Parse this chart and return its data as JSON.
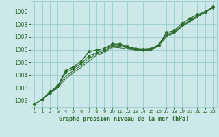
{
  "title": "Graphe pression niveau de la mer (hPa)",
  "background_color": "#cce8e8",
  "grid_color": "#99cccc",
  "line_color": "#2d6a2d",
  "marker_color": "#2d6a2d",
  "xlim": [
    -0.5,
    23.5
  ],
  "ylim": [
    1001.5,
    1009.8
  ],
  "yticks": [
    1002,
    1003,
    1004,
    1005,
    1006,
    1007,
    1008,
    1009
  ],
  "xticks": [
    0,
    1,
    2,
    3,
    4,
    5,
    6,
    7,
    8,
    9,
    10,
    11,
    12,
    13,
    14,
    15,
    16,
    17,
    18,
    19,
    20,
    21,
    22,
    23
  ],
  "series": [
    {
      "x": [
        0,
        1,
        2,
        3,
        4,
        5,
        6,
        7,
        8,
        9,
        10,
        11,
        12,
        13,
        14,
        15,
        16,
        17,
        18,
        19,
        20,
        21,
        22,
        23
      ],
      "y": [
        1001.7,
        1002.1,
        1002.7,
        1003.15,
        1004.35,
        1004.65,
        1005.05,
        1005.85,
        1005.95,
        1006.1,
        1006.45,
        1006.45,
        1006.25,
        1006.1,
        1006.05,
        1006.1,
        1006.35,
        1007.35,
        1007.5,
        1008.05,
        1008.45,
        1008.75,
        1009.0,
        1009.35
      ],
      "marker": "D",
      "markersize": 2.5,
      "linewidth": 1.0,
      "zorder": 5
    },
    {
      "x": [
        0,
        1,
        2,
        3,
        4,
        5,
        6,
        7,
        8,
        9,
        10,
        11,
        12,
        13,
        14,
        15,
        16,
        17,
        18,
        19,
        20,
        21,
        22,
        23
      ],
      "y": [
        1001.7,
        1002.1,
        1002.6,
        1003.1,
        1004.2,
        1004.5,
        1004.9,
        1005.5,
        1005.75,
        1005.95,
        1006.35,
        1006.35,
        1006.2,
        1006.05,
        1006.0,
        1006.05,
        1006.4,
        1007.2,
        1007.4,
        1007.9,
        1008.3,
        1008.65,
        1008.95,
        1009.3
      ],
      "marker": "D",
      "markersize": 2.0,
      "linewidth": 0.8,
      "zorder": 4
    },
    {
      "x": [
        0,
        1,
        2,
        3,
        4,
        5,
        6,
        7,
        8,
        9,
        10,
        11,
        12,
        13,
        14,
        15,
        16,
        17,
        18,
        19,
        20,
        21,
        22,
        23
      ],
      "y": [
        1001.7,
        1002.1,
        1002.6,
        1003.05,
        1003.9,
        1004.35,
        1004.75,
        1005.3,
        1005.65,
        1005.85,
        1006.3,
        1006.25,
        1006.15,
        1006.0,
        1005.98,
        1006.0,
        1006.35,
        1007.1,
        1007.35,
        1007.85,
        1008.25,
        1008.6,
        1008.95,
        1009.3
      ],
      "marker": null,
      "markersize": 0,
      "linewidth": 0.7,
      "zorder": 3
    },
    {
      "x": [
        0,
        1,
        2,
        3,
        4,
        5,
        6,
        7,
        8,
        9,
        10,
        11,
        12,
        13,
        14,
        15,
        16,
        17,
        18,
        19,
        20,
        21,
        22,
        23
      ],
      "y": [
        1001.7,
        1002.1,
        1002.55,
        1003.0,
        1003.7,
        1004.2,
        1004.6,
        1005.1,
        1005.55,
        1005.75,
        1006.2,
        1006.15,
        1006.05,
        1005.95,
        1005.95,
        1005.95,
        1006.3,
        1007.0,
        1007.3,
        1007.8,
        1008.2,
        1008.55,
        1008.95,
        1009.3
      ],
      "marker": null,
      "markersize": 0,
      "linewidth": 0.7,
      "zorder": 2
    }
  ]
}
